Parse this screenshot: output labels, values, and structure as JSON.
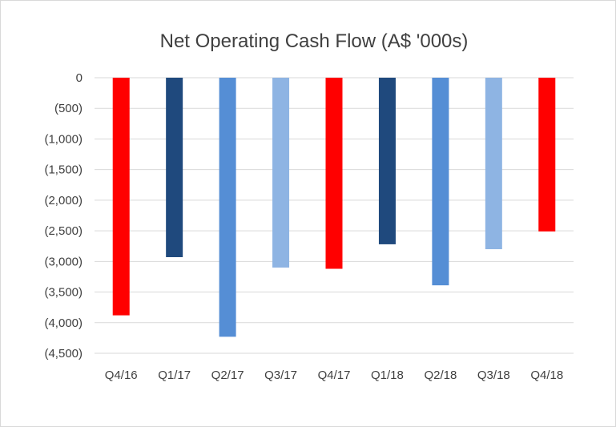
{
  "chart_data": {
    "type": "bar",
    "title": "Net Operating Cash Flow (A$ '000s)",
    "xlabel": "",
    "ylabel": "",
    "categories": [
      "Q4/16",
      "Q1/17",
      "Q2/17",
      "Q3/17",
      "Q4/17",
      "Q1/18",
      "Q2/18",
      "Q3/18",
      "Q4/18"
    ],
    "values": [
      -3880,
      -2930,
      -4230,
      -3100,
      -3120,
      -2720,
      -3390,
      -2800,
      -2510
    ],
    "bar_colors": [
      "#ff0000",
      "#1f497d",
      "#558ed5",
      "#8eb4e3",
      "#ff0000",
      "#1f497d",
      "#558ed5",
      "#8eb4e3",
      "#ff0000"
    ],
    "ylim": [
      -4500,
      0
    ],
    "yticks": [
      0,
      -500,
      -1000,
      -1500,
      -2000,
      -2500,
      -3000,
      -3500,
      -4000,
      -4500
    ],
    "ytick_labels": [
      "0",
      "(500)",
      "(1,000)",
      "(1,500)",
      "(2,000)",
      "(2,500)",
      "(3,000)",
      "(3,500)",
      "(4,000)",
      "(4,500)"
    ],
    "grid": true,
    "legend": "none"
  }
}
